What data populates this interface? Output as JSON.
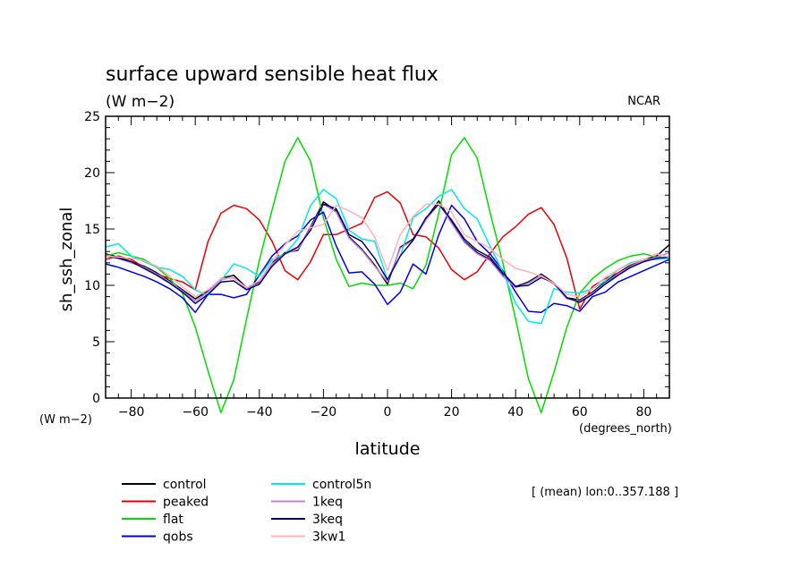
{
  "chart_data": {
    "type": "line",
    "title": "surface upward sensible heat flux",
    "subtitle": "(W m−2)",
    "credit": "NCAR",
    "ylabel": "sh_ssh_zonal",
    "y_units_label": "(W m−2)",
    "xlabel": "latitude",
    "x_units_label": "(degrees_north)",
    "note": "[ (mean) lon:0..357.188 ]",
    "xlim": [
      -88,
      88
    ],
    "ylim": [
      0,
      25
    ],
    "x_ticks": [
      -80,
      -60,
      -40,
      -20,
      0,
      20,
      40,
      60,
      80
    ],
    "x_tick_labels": [
      "−80",
      "−60",
      "−40",
      "−20",
      "0",
      "20",
      "40",
      "60",
      "80"
    ],
    "y_ticks": [
      0,
      5,
      10,
      15,
      20,
      25
    ],
    "y_tick_labels": [
      "0",
      "5",
      "10",
      "15",
      "20",
      "25"
    ],
    "x": [
      -88,
      -84,
      -80,
      -76,
      -72,
      -68,
      -64,
      -60,
      -56,
      -52,
      -48,
      -44,
      -40,
      -36,
      -32,
      -28,
      -24,
      -20,
      -16,
      -12,
      -8,
      -4,
      0,
      4,
      8,
      12,
      16,
      20,
      24,
      28,
      32,
      36,
      40,
      44,
      48,
      52,
      56,
      60,
      64,
      68,
      72,
      76,
      80,
      84,
      88
    ],
    "series": [
      {
        "name": "control",
        "color": "#000000",
        "values": [
          12.8,
          12.5,
          12.1,
          11.7,
          11.1,
          10.4,
          9.6,
          8.8,
          9.5,
          10.6,
          10.9,
          9.8,
          10.3,
          12.0,
          12.9,
          13.1,
          15.2,
          17.4,
          16.6,
          14.3,
          13.2,
          11.8,
          10.1,
          13.4,
          14.1,
          15.9,
          17.5,
          15.6,
          13.9,
          12.9,
          12.3,
          10.9,
          9.9,
          10.3,
          11.0,
          10.2,
          8.9,
          8.7,
          9.4,
          10.3,
          11.1,
          11.8,
          12.3,
          12.6,
          13.6
        ]
      },
      {
        "name": "peaked",
        "color": "#e80000",
        "values": [
          12.3,
          12.6,
          12.3,
          11.6,
          11.0,
          10.6,
          10.3,
          9.6,
          13.9,
          16.4,
          17.1,
          16.8,
          15.8,
          13.9,
          11.3,
          10.5,
          12.1,
          14.5,
          14.5,
          15.0,
          15.5,
          17.8,
          18.3,
          17.3,
          14.5,
          14.3,
          13.3,
          11.4,
          10.5,
          11.2,
          12.8,
          14.3,
          15.2,
          16.3,
          16.9,
          15.4,
          12.4,
          7.9,
          9.9,
          10.6,
          11.1,
          11.6,
          12.1,
          12.5,
          12.4
        ]
      },
      {
        "name": "flat",
        "color": "#00dc00",
        "values": [
          12.6,
          12.9,
          12.6,
          12.3,
          11.6,
          10.6,
          9.3,
          6.3,
          2.4,
          -1.3,
          1.6,
          7.0,
          12.2,
          16.7,
          21.0,
          23.1,
          21.0,
          16.0,
          12.3,
          9.9,
          10.2,
          10.0,
          10.0,
          10.2,
          9.7,
          11.8,
          16.4,
          21.6,
          23.1,
          21.3,
          16.5,
          12.0,
          7.0,
          1.7,
          -1.3,
          2.3,
          6.3,
          9.3,
          10.6,
          11.5,
          12.2,
          12.6,
          12.8,
          12.5,
          12.4
        ]
      },
      {
        "name": "qobs",
        "color": "#0000e8",
        "values": [
          11.9,
          11.6,
          11.2,
          10.8,
          10.3,
          9.7,
          8.9,
          7.6,
          9.2,
          9.2,
          8.9,
          9.2,
          10.9,
          12.6,
          13.7,
          14.4,
          15.8,
          16.5,
          13.5,
          11.1,
          11.2,
          10.1,
          8.3,
          9.4,
          11.9,
          11.0,
          14.5,
          17.1,
          15.9,
          13.9,
          12.8,
          11.3,
          9.4,
          7.7,
          7.6,
          8.4,
          8.2,
          7.7,
          9.0,
          9.4,
          10.3,
          10.8,
          11.3,
          11.8,
          12.3
        ]
      },
      {
        "name": "control5n",
        "color": "#00e8e8",
        "values": [
          13.4,
          13.7,
          12.6,
          12.1,
          11.6,
          11.4,
          10.8,
          9.6,
          9.1,
          10.4,
          11.9,
          11.5,
          10.8,
          12.3,
          12.8,
          14.1,
          17.1,
          18.5,
          17.7,
          14.9,
          14.1,
          13.9,
          10.5,
          12.6,
          16.0,
          16.8,
          17.9,
          18.5,
          16.8,
          15.9,
          13.5,
          11.2,
          8.4,
          6.8,
          6.6,
          9.7,
          9.4,
          9.3,
          9.7,
          10.4,
          11.4,
          12.0,
          12.3,
          12.3,
          12.4
        ]
      },
      {
        "name": "1keq",
        "color": "#c080e0",
        "values": [
          12.7,
          12.4,
          12.0,
          11.6,
          11.0,
          10.3,
          9.5,
          8.6,
          9.4,
          10.5,
          10.7,
          9.7,
          10.2,
          11.9,
          12.8,
          13.2,
          15.1,
          17.2,
          16.5,
          14.2,
          13.1,
          11.7,
          10.3,
          13.3,
          14.0,
          15.8,
          17.3,
          15.5,
          13.8,
          12.8,
          12.2,
          10.8,
          9.8,
          10.2,
          10.9,
          10.1,
          8.8,
          8.6,
          9.3,
          10.2,
          11.0,
          11.7,
          12.2,
          12.5,
          12.9
        ]
      },
      {
        "name": "3keq",
        "color": "#000080",
        "values": [
          12.6,
          12.4,
          12.1,
          11.5,
          10.9,
          10.2,
          9.4,
          8.4,
          9.2,
          10.3,
          10.4,
          9.6,
          10.1,
          11.7,
          12.8,
          13.4,
          14.9,
          17.2,
          16.8,
          14.5,
          13.9,
          12.4,
          10.5,
          12.6,
          14.0,
          16.0,
          17.2,
          15.8,
          14.1,
          13.1,
          12.5,
          11.1,
          9.9,
          10.0,
          10.7,
          10.2,
          8.9,
          8.5,
          9.2,
          10.1,
          10.9,
          11.6,
          12.1,
          12.4,
          12.5
        ]
      },
      {
        "name": "3kw1",
        "color": "#ffb0b8",
        "values": [
          12.6,
          12.5,
          12.4,
          12.2,
          11.7,
          10.8,
          9.9,
          9.0,
          9.6,
          10.6,
          10.6,
          9.8,
          10.4,
          12.1,
          13.6,
          14.8,
          15.1,
          15.4,
          17.1,
          16.6,
          16.0,
          14.3,
          11.3,
          14.5,
          16.1,
          17.2,
          17.2,
          16.5,
          14.5,
          13.9,
          13.3,
          12.3,
          11.5,
          11.2,
          10.8,
          10.2,
          9.2,
          9.0,
          9.7,
          10.7,
          11.4,
          11.9,
          12.3,
          12.8,
          12.5
        ]
      }
    ]
  }
}
